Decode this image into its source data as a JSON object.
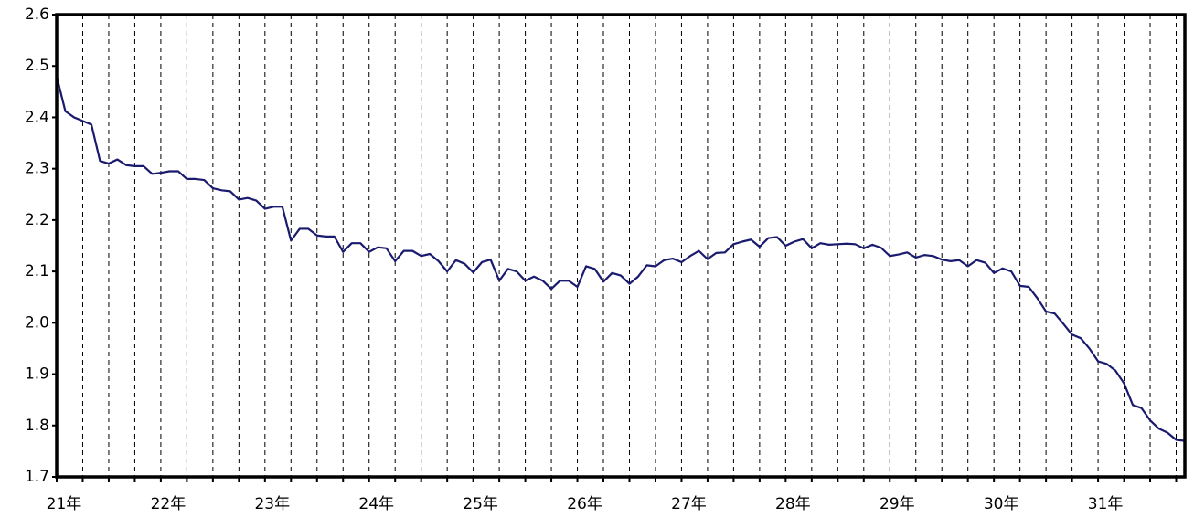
{
  "chart_data": {
    "type": "line",
    "categories": [
      "21年",
      null,
      null,
      null,
      null,
      null,
      null,
      null,
      null,
      null,
      null,
      null,
      "22年",
      null,
      null,
      null,
      null,
      null,
      null,
      null,
      null,
      null,
      null,
      null,
      "23年",
      null,
      null,
      null,
      null,
      null,
      null,
      null,
      null,
      null,
      null,
      null,
      "24年",
      null,
      null,
      null,
      null,
      null,
      null,
      null,
      null,
      null,
      null,
      null,
      "25年",
      null,
      null,
      null,
      null,
      null,
      null,
      null,
      null,
      null,
      null,
      null,
      "26年",
      null,
      null,
      null,
      null,
      null,
      null,
      null,
      null,
      null,
      null,
      null,
      "27年",
      null,
      null,
      null,
      null,
      null,
      null,
      null,
      null,
      null,
      null,
      null,
      "28年",
      null,
      null,
      null,
      null,
      null,
      null,
      null,
      null,
      null,
      null,
      null,
      "29年",
      null,
      null,
      null,
      null,
      null,
      null,
      null,
      null,
      null,
      null,
      null,
      "30年",
      null,
      null,
      null,
      null,
      null,
      null,
      null,
      null,
      null,
      null,
      null,
      "31年",
      null,
      null,
      null,
      null,
      null,
      null,
      null,
      null,
      null,
      null
    ],
    "series": [
      {
        "color": "#1a1a6e",
        "values": [
          2.48,
          2.412,
          2.4,
          2.393,
          2.386,
          2.315,
          2.31,
          2.318,
          2.307,
          2.305,
          2.305,
          2.29,
          2.292,
          2.295,
          2.295,
          2.28,
          2.28,
          2.278,
          2.262,
          2.258,
          2.256,
          2.24,
          2.243,
          2.238,
          2.222,
          2.226,
          2.226,
          2.16,
          2.183,
          2.183,
          2.17,
          2.168,
          2.168,
          2.138,
          2.155,
          2.155,
          2.138,
          2.147,
          2.145,
          2.12,
          2.14,
          2.14,
          2.13,
          2.134,
          2.12,
          2.1,
          2.122,
          2.115,
          2.098,
          2.118,
          2.123,
          2.082,
          2.105,
          2.1,
          2.082,
          2.09,
          2.082,
          2.066,
          2.082,
          2.082,
          2.07,
          2.11,
          2.105,
          2.08,
          2.097,
          2.092,
          2.076,
          2.09,
          2.112,
          2.11,
          2.122,
          2.125,
          2.118,
          2.13,
          2.14,
          2.124,
          2.136,
          2.137,
          2.153,
          2.158,
          2.162,
          2.148,
          2.165,
          2.167,
          2.15,
          2.158,
          2.163,
          2.145,
          2.155,
          2.152,
          2.153,
          2.154,
          2.153,
          2.145,
          2.152,
          2.146,
          2.13,
          2.133,
          2.137,
          2.127,
          2.132,
          2.13,
          2.123,
          2.12,
          2.122,
          2.11,
          2.122,
          2.117,
          2.097,
          2.106,
          2.1,
          2.072,
          2.07,
          2.048,
          2.022,
          2.018,
          1.998,
          1.977,
          1.97,
          1.95,
          1.925,
          1.92,
          1.907,
          1.882,
          1.84,
          1.834,
          1.81,
          1.794,
          1.786,
          1.772,
          1.77
        ]
      }
    ],
    "ylim": [
      1.7,
      2.6
    ],
    "yticks": [
      1.7,
      1.8,
      1.9,
      {
        "value": 2,
        "label": "2.0"
      },
      2.1,
      2.2,
      2.3,
      2.4,
      2.5,
      2.6
    ],
    "grid": true
  }
}
